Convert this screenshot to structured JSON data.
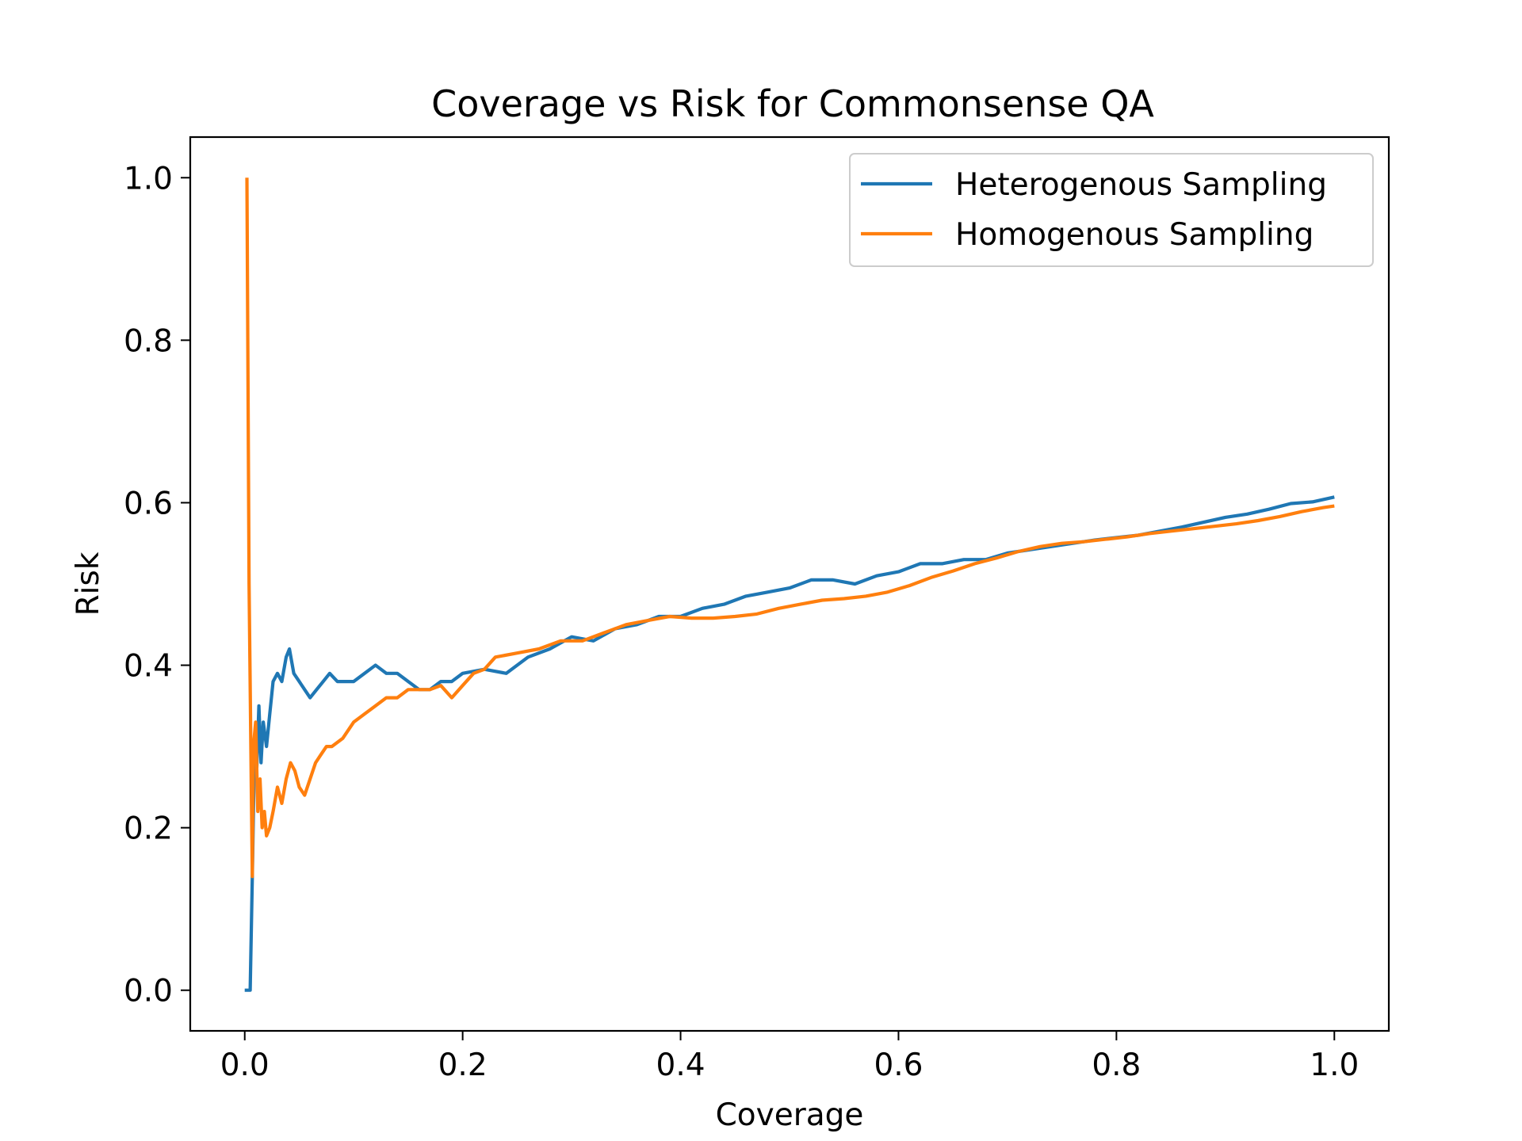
{
  "chart_data": {
    "type": "line",
    "title": "Coverage vs Risk for Commonsense QA",
    "xlabel": "Coverage",
    "ylabel": "Risk",
    "xlim": [
      -0.05,
      1.05
    ],
    "ylim": [
      -0.05,
      1.05
    ],
    "xticks": [
      0.0,
      0.2,
      0.4,
      0.6,
      0.8,
      1.0
    ],
    "xtick_labels": [
      "0.0",
      "0.2",
      "0.4",
      "0.6",
      "0.8",
      "1.0"
    ],
    "yticks": [
      0.0,
      0.2,
      0.4,
      0.6,
      0.8,
      1.0
    ],
    "ytick_labels": [
      "0.0",
      "0.2",
      "0.4",
      "0.6",
      "0.8",
      "1.0"
    ],
    "grid": false,
    "legend_position": "top-right",
    "series": [
      {
        "name": "Heterogenous Sampling",
        "color": "#1f77b4",
        "points": [
          [
            0.0,
            0.0
          ],
          [
            0.004,
            0.0
          ],
          [
            0.005,
            0.0
          ],
          [
            0.007,
            0.14
          ],
          [
            0.009,
            0.3
          ],
          [
            0.011,
            0.27
          ],
          [
            0.013,
            0.35
          ],
          [
            0.015,
            0.28
          ],
          [
            0.017,
            0.33
          ],
          [
            0.02,
            0.3
          ],
          [
            0.023,
            0.34
          ],
          [
            0.026,
            0.38
          ],
          [
            0.03,
            0.39
          ],
          [
            0.034,
            0.38
          ],
          [
            0.038,
            0.41
          ],
          [
            0.041,
            0.42
          ],
          [
            0.045,
            0.39
          ],
          [
            0.05,
            0.38
          ],
          [
            0.055,
            0.37
          ],
          [
            0.06,
            0.36
          ],
          [
            0.066,
            0.37
          ],
          [
            0.072,
            0.38
          ],
          [
            0.078,
            0.39
          ],
          [
            0.085,
            0.38
          ],
          [
            0.092,
            0.38
          ],
          [
            0.1,
            0.38
          ],
          [
            0.11,
            0.39
          ],
          [
            0.12,
            0.4
          ],
          [
            0.13,
            0.39
          ],
          [
            0.14,
            0.39
          ],
          [
            0.15,
            0.38
          ],
          [
            0.16,
            0.37
          ],
          [
            0.17,
            0.37
          ],
          [
            0.18,
            0.38
          ],
          [
            0.19,
            0.38
          ],
          [
            0.2,
            0.39
          ],
          [
            0.22,
            0.395
          ],
          [
            0.24,
            0.39
          ],
          [
            0.26,
            0.41
          ],
          [
            0.28,
            0.42
          ],
          [
            0.3,
            0.435
          ],
          [
            0.32,
            0.43
          ],
          [
            0.34,
            0.445
          ],
          [
            0.36,
            0.45
          ],
          [
            0.38,
            0.46
          ],
          [
            0.4,
            0.46
          ],
          [
            0.42,
            0.47
          ],
          [
            0.44,
            0.475
          ],
          [
            0.46,
            0.485
          ],
          [
            0.48,
            0.49
          ],
          [
            0.5,
            0.495
          ],
          [
            0.52,
            0.505
          ],
          [
            0.54,
            0.505
          ],
          [
            0.56,
            0.5
          ],
          [
            0.58,
            0.51
          ],
          [
            0.6,
            0.515
          ],
          [
            0.62,
            0.525
          ],
          [
            0.64,
            0.525
          ],
          [
            0.66,
            0.53
          ],
          [
            0.68,
            0.53
          ],
          [
            0.7,
            0.538
          ],
          [
            0.72,
            0.542
          ],
          [
            0.74,
            0.546
          ],
          [
            0.76,
            0.55
          ],
          [
            0.78,
            0.554
          ],
          [
            0.8,
            0.557
          ],
          [
            0.82,
            0.56
          ],
          [
            0.84,
            0.565
          ],
          [
            0.86,
            0.57
          ],
          [
            0.88,
            0.576
          ],
          [
            0.9,
            0.582
          ],
          [
            0.92,
            0.586
          ],
          [
            0.94,
            0.592
          ],
          [
            0.96,
            0.599
          ],
          [
            0.98,
            0.601
          ],
          [
            1.0,
            0.607
          ]
        ]
      },
      {
        "name": "Homogenous Sampling",
        "color": "#ff7f0e",
        "points": [
          [
            0.002,
            1.0
          ],
          [
            0.004,
            0.5
          ],
          [
            0.006,
            0.25
          ],
          [
            0.007,
            0.14
          ],
          [
            0.008,
            0.3
          ],
          [
            0.01,
            0.33
          ],
          [
            0.012,
            0.22
          ],
          [
            0.014,
            0.26
          ],
          [
            0.016,
            0.2
          ],
          [
            0.018,
            0.22
          ],
          [
            0.02,
            0.19
          ],
          [
            0.023,
            0.2
          ],
          [
            0.026,
            0.22
          ],
          [
            0.03,
            0.25
          ],
          [
            0.034,
            0.23
          ],
          [
            0.038,
            0.26
          ],
          [
            0.042,
            0.28
          ],
          [
            0.046,
            0.27
          ],
          [
            0.05,
            0.25
          ],
          [
            0.055,
            0.24
          ],
          [
            0.06,
            0.26
          ],
          [
            0.065,
            0.28
          ],
          [
            0.07,
            0.29
          ],
          [
            0.075,
            0.3
          ],
          [
            0.08,
            0.3
          ],
          [
            0.09,
            0.31
          ],
          [
            0.1,
            0.33
          ],
          [
            0.11,
            0.34
          ],
          [
            0.12,
            0.35
          ],
          [
            0.13,
            0.36
          ],
          [
            0.14,
            0.36
          ],
          [
            0.15,
            0.37
          ],
          [
            0.16,
            0.37
          ],
          [
            0.17,
            0.37
          ],
          [
            0.18,
            0.375
          ],
          [
            0.19,
            0.36
          ],
          [
            0.2,
            0.375
          ],
          [
            0.21,
            0.39
          ],
          [
            0.22,
            0.395
          ],
          [
            0.23,
            0.41
          ],
          [
            0.25,
            0.415
          ],
          [
            0.27,
            0.42
          ],
          [
            0.29,
            0.43
          ],
          [
            0.31,
            0.43
          ],
          [
            0.33,
            0.44
          ],
          [
            0.35,
            0.45
          ],
          [
            0.37,
            0.455
          ],
          [
            0.39,
            0.46
          ],
          [
            0.41,
            0.458
          ],
          [
            0.43,
            0.458
          ],
          [
            0.45,
            0.46
          ],
          [
            0.47,
            0.463
          ],
          [
            0.49,
            0.47
          ],
          [
            0.51,
            0.475
          ],
          [
            0.53,
            0.48
          ],
          [
            0.55,
            0.482
          ],
          [
            0.57,
            0.485
          ],
          [
            0.59,
            0.49
          ],
          [
            0.61,
            0.498
          ],
          [
            0.63,
            0.508
          ],
          [
            0.65,
            0.516
          ],
          [
            0.67,
            0.525
          ],
          [
            0.69,
            0.532
          ],
          [
            0.71,
            0.54
          ],
          [
            0.73,
            0.546
          ],
          [
            0.75,
            0.55
          ],
          [
            0.77,
            0.552
          ],
          [
            0.79,
            0.555
          ],
          [
            0.81,
            0.558
          ],
          [
            0.83,
            0.562
          ],
          [
            0.85,
            0.565
          ],
          [
            0.87,
            0.568
          ],
          [
            0.89,
            0.571
          ],
          [
            0.91,
            0.574
          ],
          [
            0.93,
            0.578
          ],
          [
            0.95,
            0.583
          ],
          [
            0.97,
            0.589
          ],
          [
            0.99,
            0.594
          ],
          [
            1.0,
            0.596
          ]
        ]
      }
    ]
  }
}
